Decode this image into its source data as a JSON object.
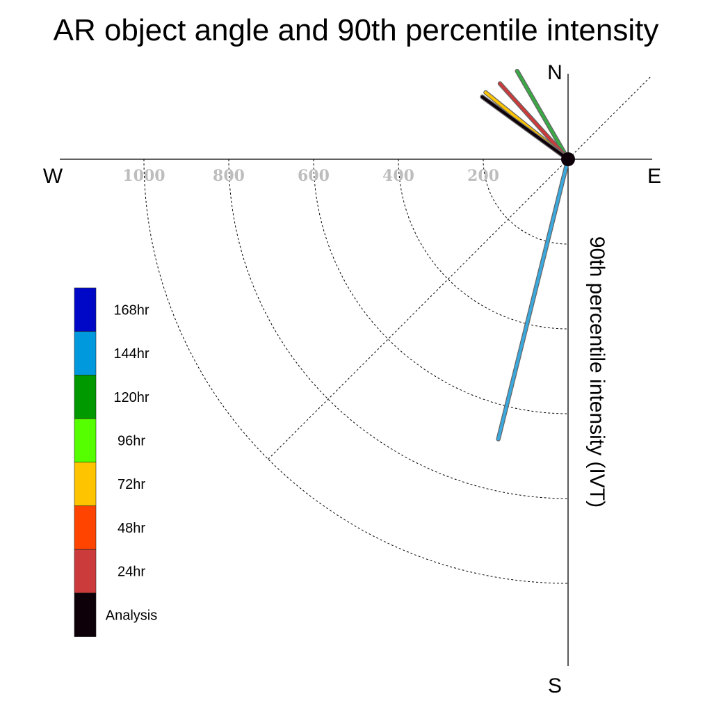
{
  "chart_data": {
    "type": "polar-vector",
    "title": "AR object angle and 90th percentile intensity",
    "ylabel": "90th percentile intensity (IVT)",
    "compass": {
      "north": "N",
      "south": "S",
      "east": "E",
      "west": "W"
    },
    "radial_ticks": [
      200,
      400,
      600,
      800,
      1000
    ],
    "radial_range": [
      0,
      1200
    ],
    "grid": true,
    "legend_placement": "left",
    "legend": [
      {
        "label": "168hr",
        "color": "#0008c8"
      },
      {
        "label": "144hr",
        "color": "#0099dd"
      },
      {
        "label": "120hr",
        "color": "#009900"
      },
      {
        "label": "96hr",
        "color": "#55ff00"
      },
      {
        "label": "72hr",
        "color": "#ffc400"
      },
      {
        "label": "48hr",
        "color": "#ff4400"
      },
      {
        "label": "24hr",
        "color": "#cc3b3b"
      },
      {
        "label": "Analysis",
        "color": "#0d0008"
      }
    ],
    "series": [
      {
        "name": "120hr",
        "color": "#3aa945",
        "angle_deg": 330,
        "ivt": 240
      },
      {
        "name": "24hr",
        "color": "#cc3b3b",
        "angle_deg": 318,
        "ivt": 240
      },
      {
        "name": "72hr",
        "color": "#ffc400",
        "angle_deg": 309,
        "ivt": 250
      },
      {
        "name": "96hr",
        "color": "#55ff00",
        "angle_deg": 306,
        "ivt": 250
      },
      {
        "name": "Analysis",
        "color": "#0d0008",
        "angle_deg": 306,
        "ivt": 250
      },
      {
        "name": "144hr",
        "color": "#3aa9dd",
        "angle_deg": 194,
        "ivt": 680
      }
    ]
  }
}
